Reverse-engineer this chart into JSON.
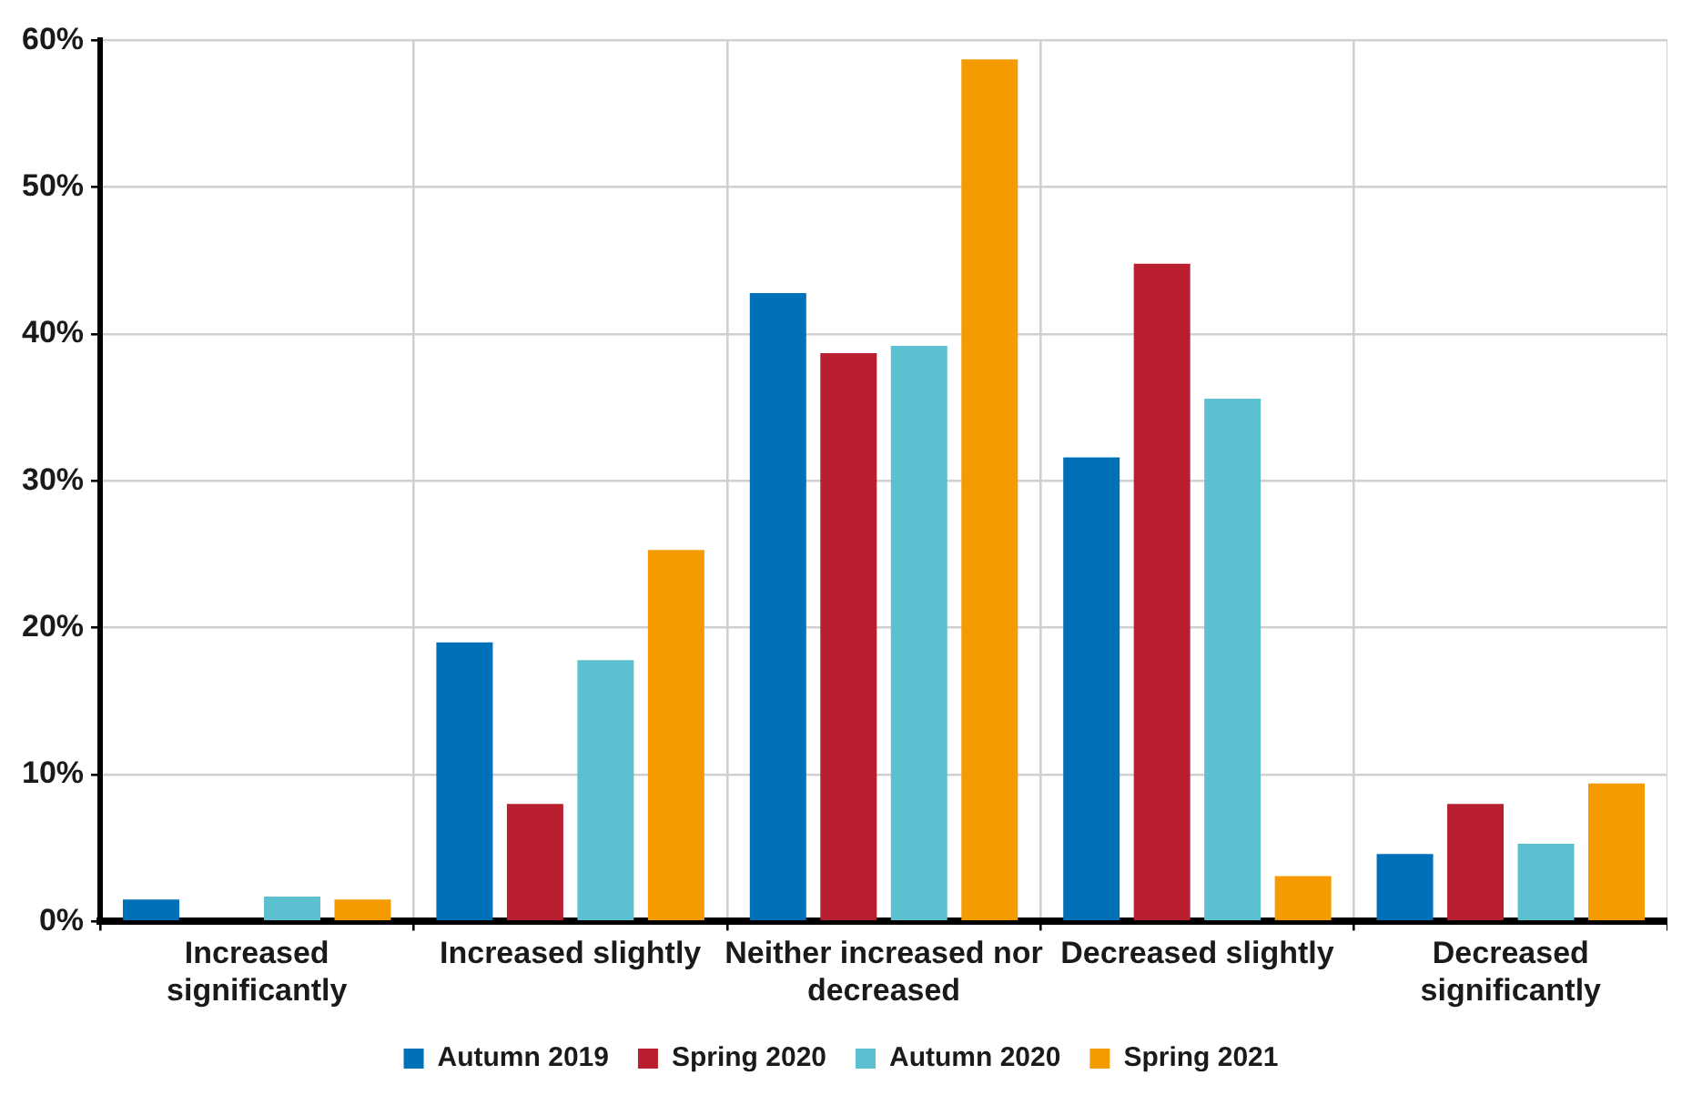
{
  "chart_data": {
    "type": "bar",
    "categories": [
      "Increased significantly",
      "Increased slightly",
      "Neither increased nor decreased",
      "Decreased slightly",
      "Decreased significantly"
    ],
    "series": [
      {
        "name": "Autumn 2019",
        "color": "#0070b8",
        "values": [
          1.5,
          19.0,
          42.8,
          31.6,
          4.6
        ]
      },
      {
        "name": "Spring 2020",
        "color": "#b91f2e",
        "values": [
          0,
          8.0,
          38.7,
          44.8,
          8.0
        ]
      },
      {
        "name": "Autumn 2020",
        "color": "#5bc0cf",
        "values": [
          1.7,
          17.8,
          39.2,
          35.6,
          5.3
        ]
      },
      {
        "name": "Spring 2021",
        "color": "#f59b00",
        "values": [
          1.5,
          25.3,
          58.7,
          3.1,
          9.4
        ]
      }
    ],
    "ylim": [
      0,
      60
    ],
    "yticks": [
      {
        "value": 0,
        "label": "0%"
      },
      {
        "value": 10,
        "label": "10%"
      },
      {
        "value": 20,
        "label": "20%"
      },
      {
        "value": 30,
        "label": "30%"
      },
      {
        "value": 40,
        "label": "40%"
      },
      {
        "value": 50,
        "label": "50%"
      },
      {
        "value": 60,
        "label": "60%"
      }
    ],
    "grid": true,
    "legend": "bottom"
  }
}
